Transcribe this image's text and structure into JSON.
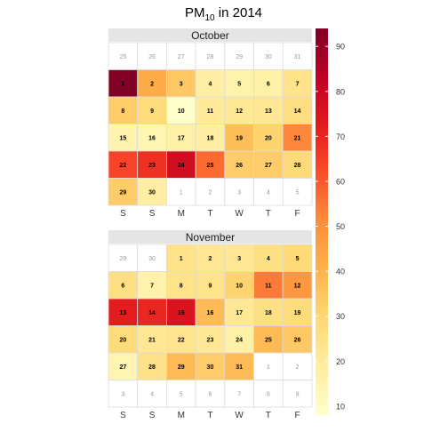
{
  "chart_data": {
    "type": "heatmap",
    "title_main": "PM",
    "title_sub": "10",
    "title_rest": " in 2014",
    "weekday_labels": [
      "S",
      "S",
      "M",
      "T",
      "W",
      "T",
      "F"
    ],
    "colorbar": {
      "range": [
        8,
        94
      ],
      "ticks": [
        10,
        20,
        30,
        40,
        50,
        60,
        70,
        80,
        90
      ],
      "colors": [
        "#FFFFCC",
        "#FFEDA0",
        "#FED976",
        "#FEB24C",
        "#FD8D3C",
        "#FC4E2A",
        "#E31A1C",
        "#BD0026",
        "#800026"
      ]
    },
    "panels": [
      {
        "name": "October",
        "rows": [
          [
            {
              "d": "25",
              "v": null,
              "in": false
            },
            {
              "d": "26",
              "v": null,
              "in": false
            },
            {
              "d": "27",
              "v": null,
              "in": false
            },
            {
              "d": "28",
              "v": null,
              "in": false
            },
            {
              "d": "29",
              "v": null,
              "in": false
            },
            {
              "d": "30",
              "v": null,
              "in": false
            },
            {
              "d": "31",
              "v": null,
              "in": false
            }
          ],
          [
            {
              "d": "1",
              "v": 94,
              "in": true
            },
            {
              "d": "2",
              "v": 42,
              "in": true
            },
            {
              "d": "3",
              "v": 34,
              "in": true
            },
            {
              "d": "4",
              "v": 18,
              "in": true
            },
            {
              "d": "5",
              "v": 16,
              "in": true
            },
            {
              "d": "6",
              "v": 17,
              "in": true
            },
            {
              "d": "7",
              "v": 24,
              "in": true
            }
          ],
          [
            {
              "d": "8",
              "v": 33,
              "in": true
            },
            {
              "d": "9",
              "v": 28,
              "in": true
            },
            {
              "d": "10",
              "v": 8,
              "in": true
            },
            {
              "d": "11",
              "v": 20,
              "in": true
            },
            {
              "d": "12",
              "v": 21,
              "in": true
            },
            {
              "d": "13",
              "v": 22,
              "in": true
            },
            {
              "d": "14",
              "v": 27,
              "in": true
            }
          ],
          [
            {
              "d": "15",
              "v": 15,
              "in": true
            },
            {
              "d": "16",
              "v": 14,
              "in": true
            },
            {
              "d": "17",
              "v": 17,
              "in": true
            },
            {
              "d": "18",
              "v": 18,
              "in": true
            },
            {
              "d": "19",
              "v": 37,
              "in": true
            },
            {
              "d": "20",
              "v": 31,
              "in": true
            },
            {
              "d": "21",
              "v": 52,
              "in": true
            }
          ],
          [
            {
              "d": "22",
              "v": 64,
              "in": true
            },
            {
              "d": "23",
              "v": 68,
              "in": true
            },
            {
              "d": "24",
              "v": 78,
              "in": true
            },
            {
              "d": "25",
              "v": 57,
              "in": true
            },
            {
              "d": "26",
              "v": 33,
              "in": true
            },
            {
              "d": "27",
              "v": 33,
              "in": true
            },
            {
              "d": "28",
              "v": 29,
              "in": true
            }
          ],
          [
            {
              "d": "29",
              "v": 33,
              "in": true
            },
            {
              "d": "30",
              "v": 18,
              "in": true
            },
            {
              "d": "1",
              "v": null,
              "in": false
            },
            {
              "d": "2",
              "v": null,
              "in": false
            },
            {
              "d": "3",
              "v": null,
              "in": false
            },
            {
              "d": "4",
              "v": null,
              "in": false
            },
            {
              "d": "5",
              "v": null,
              "in": false
            }
          ]
        ]
      },
      {
        "name": "November",
        "rows": [
          [
            {
              "d": "29",
              "v": null,
              "in": false
            },
            {
              "d": "30",
              "v": null,
              "in": false
            },
            {
              "d": "1",
              "v": 24,
              "in": true
            },
            {
              "d": "2",
              "v": 22,
              "in": true
            },
            {
              "d": "3",
              "v": 22,
              "in": true
            },
            {
              "d": "4",
              "v": 26,
              "in": true
            },
            {
              "d": "5",
              "v": 29,
              "in": true
            }
          ],
          [
            {
              "d": "6",
              "v": 26,
              "in": true
            },
            {
              "d": "7",
              "v": 16,
              "in": true
            },
            {
              "d": "8",
              "v": 24,
              "in": true
            },
            {
              "d": "9",
              "v": 24,
              "in": true
            },
            {
              "d": "10",
              "v": 31,
              "in": true
            },
            {
              "d": "11",
              "v": 54,
              "in": true
            },
            {
              "d": "12",
              "v": 48,
              "in": true
            }
          ],
          [
            {
              "d": "13",
              "v": 72,
              "in": true
            },
            {
              "d": "14",
              "v": 70,
              "in": true
            },
            {
              "d": "15",
              "v": 75,
              "in": true
            },
            {
              "d": "16",
              "v": 38,
              "in": true
            },
            {
              "d": "17",
              "v": 21,
              "in": true
            },
            {
              "d": "18",
              "v": 26,
              "in": true
            },
            {
              "d": "19",
              "v": 28,
              "in": true
            }
          ],
          [
            {
              "d": "20",
              "v": 28,
              "in": true
            },
            {
              "d": "21",
              "v": 22,
              "in": true
            },
            {
              "d": "22",
              "v": 23,
              "in": true
            },
            {
              "d": "23",
              "v": 21,
              "in": true
            },
            {
              "d": "24",
              "v": 17,
              "in": true
            },
            {
              "d": "25",
              "v": 38,
              "in": true
            },
            {
              "d": "26",
              "v": 34,
              "in": true
            }
          ],
          [
            {
              "d": "27",
              "v": 14,
              "in": true
            },
            {
              "d": "28",
              "v": 25,
              "in": true
            },
            {
              "d": "29",
              "v": 38,
              "in": true
            },
            {
              "d": "30",
              "v": 33,
              "in": true
            },
            {
              "d": "31",
              "v": 38,
              "in": true
            },
            {
              "d": "1",
              "v": null,
              "in": false
            },
            {
              "d": "2",
              "v": null,
              "in": false
            }
          ],
          [
            {
              "d": "3",
              "v": null,
              "in": false
            },
            {
              "d": "4",
              "v": null,
              "in": false
            },
            {
              "d": "5",
              "v": null,
              "in": false
            },
            {
              "d": "6",
              "v": null,
              "in": false
            },
            {
              "d": "7",
              "v": null,
              "in": false
            },
            {
              "d": "8",
              "v": null,
              "in": false
            },
            {
              "d": "9",
              "v": null,
              "in": false
            }
          ]
        ]
      }
    ]
  }
}
